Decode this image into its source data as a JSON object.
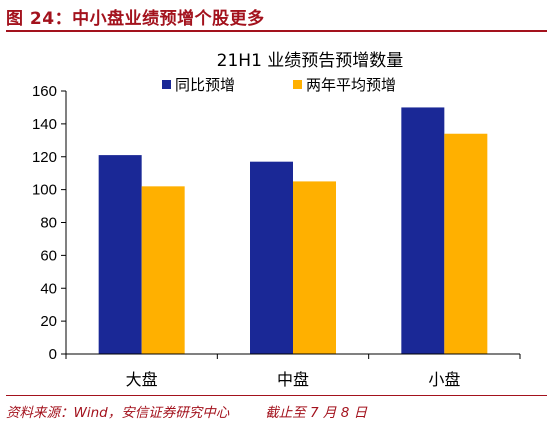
{
  "header": {
    "figure_title": "图 24：中小盘业绩预增个股更多"
  },
  "footer": {
    "source": "资料来源：Wind，安信证券研究中心",
    "note": "截止至 7 月 8 日"
  },
  "chart_data": {
    "type": "bar",
    "title": "21H1 业绩预告预增数量",
    "categories": [
      "大盘",
      "中盘",
      "小盘"
    ],
    "series": [
      {
        "name": "同比预增",
        "values": [
          121,
          117,
          150
        ],
        "color": "#1a2896"
      },
      {
        "name": "两年平均预增",
        "values": [
          102,
          105,
          134
        ],
        "color": "#ffb000"
      }
    ],
    "yticks": [
      0,
      20,
      40,
      60,
      80,
      100,
      120,
      140,
      160
    ],
    "ylim": [
      0,
      160
    ],
    "grid": false,
    "legend_position": "top"
  }
}
